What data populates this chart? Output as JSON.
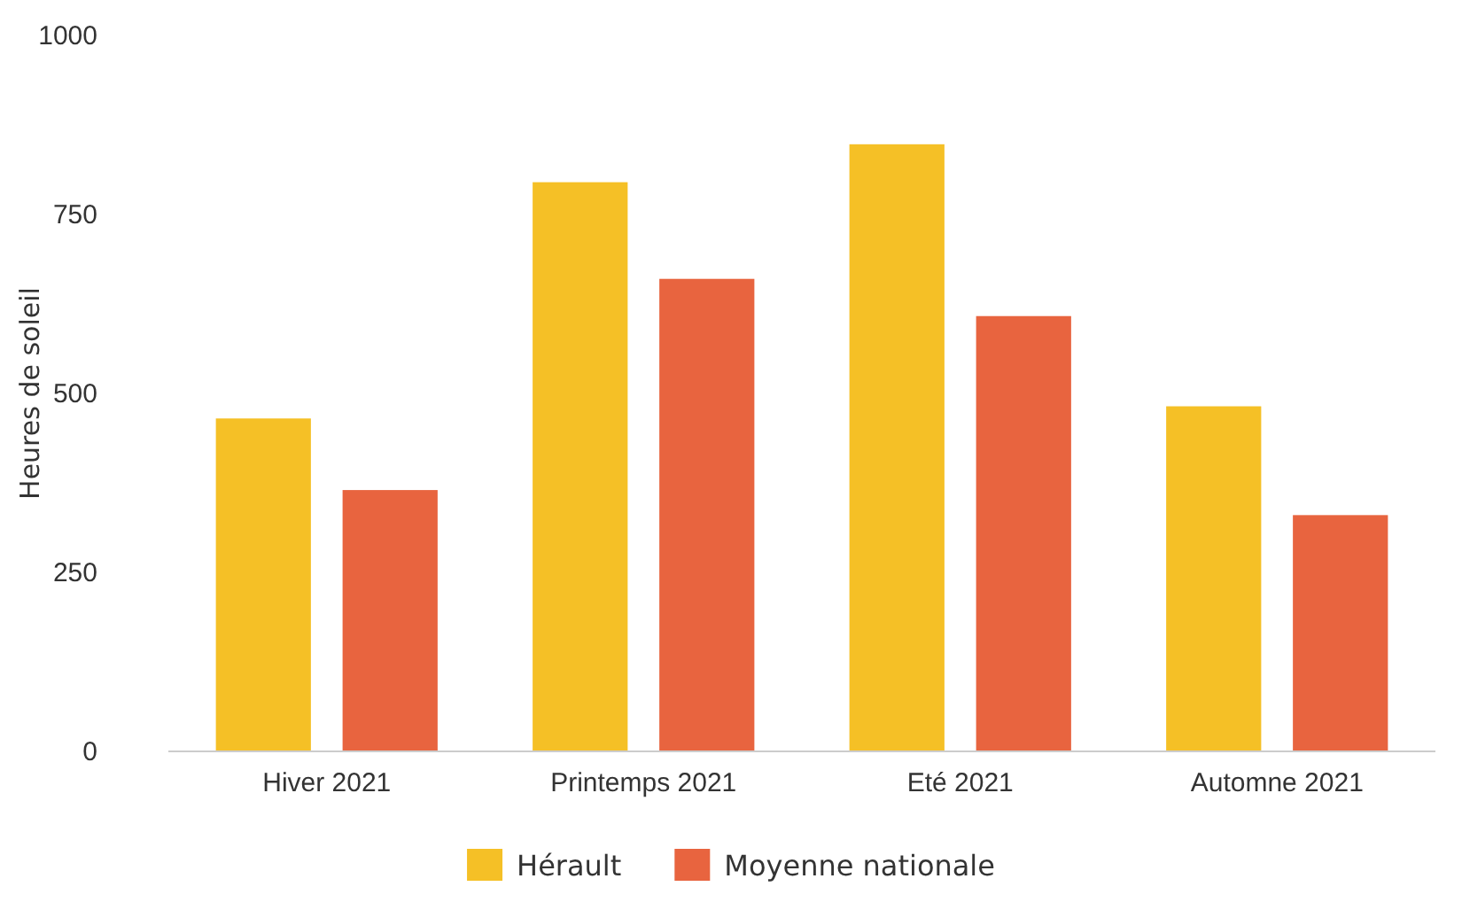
{
  "chart_data": {
    "type": "bar",
    "ylabel": "Heures de soleil",
    "categories": [
      "Hiver 2021",
      "Printemps 2021",
      "Eté 2021",
      "Automne 2021"
    ],
    "series": [
      {
        "name": "Hérault",
        "color": "#f5c026",
        "values": [
          465,
          795,
          848,
          482
        ]
      },
      {
        "name": "Moyenne nationale",
        "color": "#e8643f",
        "values": [
          365,
          660,
          608,
          330
        ]
      }
    ],
    "ylim": [
      0,
      1000
    ],
    "yticks": [
      0,
      250,
      500,
      750,
      1000
    ],
    "grid": false,
    "legend": "bottom"
  }
}
